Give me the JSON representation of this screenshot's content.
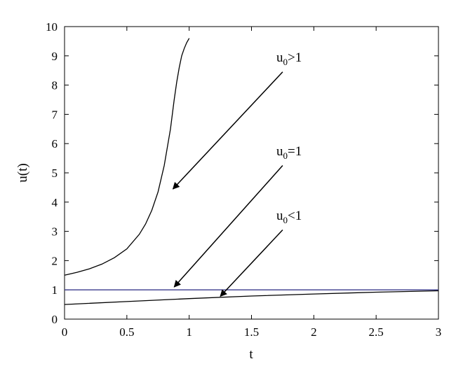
{
  "chart_data": {
    "type": "line",
    "xlabel": "t",
    "ylabel": "u(t)",
    "xlim": [
      0,
      3
    ],
    "ylim": [
      0,
      10
    ],
    "xticks": [
      "0",
      "0.5",
      "1",
      "1.5",
      "2",
      "2.5",
      "3"
    ],
    "yticks": [
      "0",
      "1",
      "2",
      "3",
      "4",
      "5",
      "6",
      "7",
      "8",
      "9",
      "10"
    ],
    "grid": false,
    "series": [
      {
        "color": "#000000",
        "x": [
          0,
          0.1,
          0.2,
          0.3,
          0.4,
          0.5,
          0.6,
          0.65,
          0.7,
          0.75,
          0.8,
          0.85,
          0.88,
          0.9,
          0.92,
          0.94,
          0.96,
          0.98,
          1.0
        ],
        "y": [
          1.5,
          1.6,
          1.72,
          1.88,
          2.1,
          2.4,
          2.9,
          3.25,
          3.72,
          4.35,
          5.25,
          6.5,
          7.5,
          8.1,
          8.6,
          9.0,
          9.25,
          9.45,
          9.6
        ]
      },
      {
        "color": "#3a3a8c",
        "x": [
          0,
          3
        ],
        "y": [
          1,
          1
        ]
      },
      {
        "color": "#000000",
        "x": [
          0,
          0.5,
          1.0,
          1.5,
          2.0,
          2.5,
          3.0
        ],
        "y": [
          0.5,
          0.6,
          0.7,
          0.79,
          0.86,
          0.92,
          0.97
        ]
      }
    ],
    "annotations": [
      {
        "base": "u",
        "sub": "0",
        "rest": ">1",
        "label_at": [
          1.7,
          8.8
        ],
        "arrow_from": [
          1.75,
          8.45
        ],
        "arrow_to": [
          0.87,
          4.45
        ]
      },
      {
        "base": "u",
        "sub": "0",
        "rest": "=1",
        "label_at": [
          1.7,
          5.6
        ],
        "arrow_from": [
          1.75,
          5.25
        ],
        "arrow_to": [
          0.88,
          1.1
        ]
      },
      {
        "base": "u",
        "sub": "0",
        "rest": "<1",
        "label_at": [
          1.7,
          3.4
        ],
        "arrow_from": [
          1.75,
          3.05
        ],
        "arrow_to": [
          1.25,
          0.78
        ]
      }
    ]
  }
}
